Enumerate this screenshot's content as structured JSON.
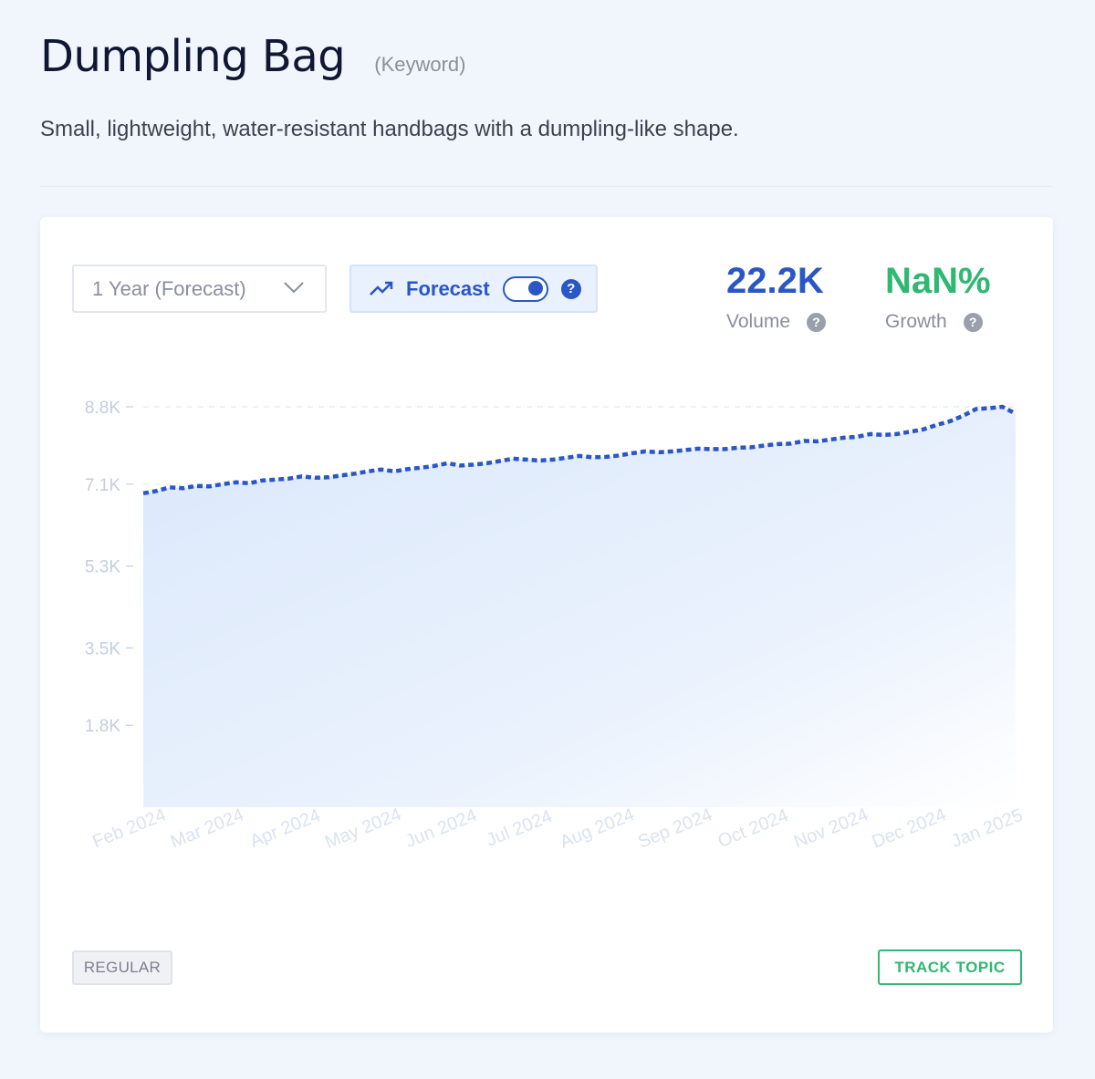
{
  "header": {
    "title": "Dumpling Bag",
    "kind": "(Keyword)",
    "description": "Small, lightweight, water-resistant handbags with a dumpling-like shape."
  },
  "controls": {
    "range_select": "1 Year (Forecast)",
    "forecast_label": "Forecast",
    "forecast_enabled": true,
    "help_symbol": "?"
  },
  "metrics": {
    "volume": {
      "value": "22.2K",
      "label": "Volume",
      "color": "#2a56c6"
    },
    "growth": {
      "value": "NaN%",
      "label": "Growth",
      "color": "#2eb872"
    }
  },
  "footer": {
    "tag": "REGULAR",
    "track_button": "TRACK TOPIC"
  },
  "chart_data": {
    "type": "area",
    "line_style": "dashed",
    "color": "#2a56c6",
    "y_ticks": [
      1800,
      3500,
      5300,
      7100,
      8800
    ],
    "y_tick_labels": [
      "1.8K",
      "3.5K",
      "5.3K",
      "7.1K",
      "8.8K"
    ],
    "ylim": [
      0,
      8800
    ],
    "x_labels": [
      "Feb 2024",
      "Mar 2024",
      "Apr 2024",
      "May 2024",
      "Jun 2024",
      "Jul 2024",
      "Aug 2024",
      "Sep 2024",
      "Oct 2024",
      "Nov 2024",
      "Dec 2024",
      "Jan 2025"
    ],
    "grid": true,
    "series": [
      {
        "values": [
          6900,
          6950,
          7030,
          7010,
          7060,
          7050,
          7100,
          7140,
          7120,
          7180,
          7200,
          7220,
          7270,
          7240,
          7250,
          7290,
          7330,
          7380,
          7420,
          7380,
          7430,
          7460,
          7500,
          7560,
          7510,
          7530,
          7560,
          7610,
          7660,
          7640,
          7620,
          7640,
          7680,
          7720,
          7690,
          7700,
          7730,
          7780,
          7820,
          7800,
          7820,
          7850,
          7880,
          7870,
          7870,
          7900,
          7910,
          7950,
          7980,
          7990,
          8050,
          8040,
          8080,
          8120,
          8140,
          8200,
          8180,
          8200,
          8250,
          8300,
          8400,
          8480,
          8600,
          8750,
          8770,
          8800,
          8650
        ]
      }
    ]
  }
}
